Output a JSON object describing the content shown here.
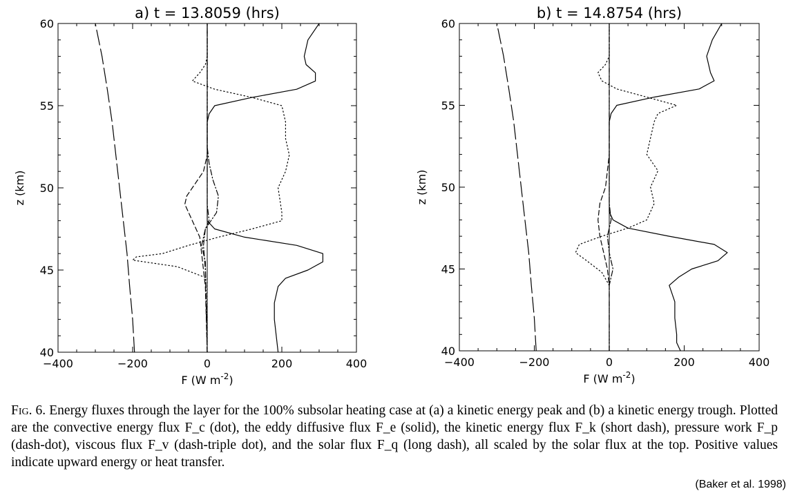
{
  "chart_data": [
    {
      "type": "line",
      "title": "a) t = 13.8059 (hrs)",
      "xlabel": "F (W m",
      "xlabel_sup": "-2",
      "xlabel_close": ")",
      "ylabel": "z (km)",
      "xlim": [
        -400,
        400
      ],
      "ylim": [
        40,
        60
      ],
      "xticks": [
        -400,
        -200,
        0,
        200,
        400
      ],
      "xtick_labels": [
        "−400",
        "−200",
        "0",
        "200",
        "400"
      ],
      "yticks": [
        40,
        45,
        50,
        55,
        60
      ],
      "ytick_labels": [
        "40",
        "45",
        "50",
        "55",
        "60"
      ],
      "series": [
        {
          "style": "dot",
          "z": [
            40,
            43,
            44.5,
            45.2,
            45.6,
            45.8,
            46,
            46.5,
            47,
            47.5,
            48,
            48.5,
            50,
            51,
            52,
            53,
            54,
            55,
            55.5,
            56,
            56.5,
            57,
            57.5,
            58,
            59,
            60
          ],
          "values": [
            0,
            0,
            0,
            -80,
            -200,
            -190,
            -120,
            -50,
            30,
            120,
            200,
            200,
            190,
            210,
            220,
            210,
            210,
            200,
            120,
            20,
            -40,
            -20,
            -5,
            0,
            0,
            0
          ]
        },
        {
          "style": "solid",
          "z": [
            40,
            41,
            42,
            43,
            44,
            44.5,
            45,
            45.5,
            46,
            46.5,
            47,
            47.5,
            48,
            49,
            50,
            51,
            52,
            53,
            54,
            54.5,
            55,
            55.5,
            56,
            56.5,
            57,
            57.5,
            58,
            59,
            60
          ],
          "values": [
            190,
            185,
            180,
            180,
            190,
            210,
            270,
            310,
            310,
            240,
            100,
            20,
            0,
            0,
            0,
            0,
            0,
            0,
            0,
            5,
            20,
            120,
            240,
            290,
            290,
            265,
            260,
            270,
            300
          ]
        },
        {
          "style": "dash",
          "z": [
            40,
            44,
            45,
            46,
            47,
            48,
            49,
            49.5,
            50,
            51,
            52,
            53,
            54,
            55,
            60
          ],
          "values": [
            0,
            -5,
            -10,
            -15,
            -20,
            -40,
            -60,
            -55,
            -40,
            -10,
            0,
            0,
            0,
            0,
            0
          ]
        },
        {
          "style": "dashdot",
          "z": [
            40,
            45,
            46.5,
            47.5,
            48.5,
            49.5,
            50.5,
            51.5,
            52.5,
            60
          ],
          "values": [
            0,
            -5,
            -10,
            -5,
            25,
            30,
            15,
            5,
            0,
            0
          ]
        },
        {
          "style": "dashdot",
          "z": [
            40,
            45.5,
            46.5,
            47.5,
            48,
            49,
            60
          ],
          "values": [
            0,
            -5,
            -15,
            -5,
            5,
            0,
            0
          ]
        },
        {
          "style": "longdash",
          "z": [
            40,
            42,
            44,
            46,
            48,
            50,
            52,
            54,
            56,
            58,
            60
          ],
          "values": [
            -195,
            -200,
            -208,
            -215,
            -225,
            -235,
            -245,
            -255,
            -268,
            -282,
            -300
          ]
        }
      ]
    },
    {
      "type": "line",
      "title": "b) t = 14.8754 (hrs)",
      "xlabel": "F (W m",
      "xlabel_sup": "-2",
      "xlabel_close": ")",
      "ylabel": "z (km)",
      "xlim": [
        -400,
        400
      ],
      "ylim": [
        40,
        60
      ],
      "xticks": [
        -400,
        -200,
        0,
        200,
        400
      ],
      "xtick_labels": [
        "−400",
        "−200",
        "0",
        "200",
        "400"
      ],
      "yticks": [
        40,
        45,
        50,
        55,
        60
      ],
      "ytick_labels": [
        "40",
        "45",
        "50",
        "55",
        "60"
      ],
      "series": [
        {
          "style": "dot",
          "z": [
            40,
            44,
            44.8,
            45.5,
            46,
            46.5,
            47,
            47.5,
            48,
            49,
            50,
            51,
            52,
            53,
            54,
            54.5,
            55,
            55.5,
            56,
            56.5,
            57,
            57.5,
            58,
            59,
            60
          ],
          "values": [
            0,
            0,
            -20,
            -60,
            -90,
            -80,
            -20,
            50,
            100,
            120,
            110,
            130,
            100,
            110,
            120,
            130,
            180,
            100,
            20,
            -20,
            -30,
            -10,
            0,
            0,
            0
          ]
        },
        {
          "style": "solid",
          "z": [
            40,
            40.5,
            41,
            42,
            43,
            44,
            44.5,
            45,
            45.5,
            46,
            46.5,
            47,
            47.5,
            48,
            48.5,
            49,
            50,
            51,
            52,
            53,
            54,
            54.5,
            55,
            55.5,
            56,
            56.5,
            57,
            58,
            59,
            60
          ],
          "values": [
            190,
            180,
            180,
            175,
            175,
            160,
            185,
            220,
            290,
            315,
            280,
            160,
            50,
            10,
            0,
            0,
            0,
            0,
            0,
            0,
            0,
            5,
            20,
            120,
            240,
            280,
            270,
            260,
            275,
            300
          ]
        },
        {
          "style": "dash",
          "z": [
            40,
            44,
            45,
            46,
            47,
            48,
            49,
            50,
            52,
            60
          ],
          "values": [
            0,
            0,
            -5,
            -15,
            -25,
            -30,
            -25,
            -10,
            0,
            0
          ]
        },
        {
          "style": "dashdot",
          "z": [
            40,
            44,
            45,
            46,
            47,
            48,
            49,
            60
          ],
          "values": [
            0,
            0,
            10,
            0,
            -5,
            5,
            0,
            0
          ]
        },
        {
          "style": "longdash",
          "z": [
            40,
            42,
            44,
            46,
            48,
            50,
            52,
            54,
            56,
            58,
            60
          ],
          "values": [
            -195,
            -200,
            -208,
            -215,
            -225,
            -235,
            -245,
            -255,
            -268,
            -282,
            -300
          ]
        }
      ]
    }
  ],
  "caption": {
    "lead": "Fig. 6.",
    "text": "Energy fluxes through the layer for the 100% subsolar heating case at (a) a kinetic energy peak and (b) a kinetic energy trough. Plotted are the convective energy flux F_c (dot), the eddy diffusive flux F_e (solid), the kinetic energy flux F_k (short dash), pressure work F_p (dash-dot), viscous flux F_v (dash-triple dot), and the solar flux F_q (long dash), all scaled by the solar flux at the top. Positive values indicate upward energy or heat transfer."
  },
  "credit": "(Baker et al. 1998)"
}
